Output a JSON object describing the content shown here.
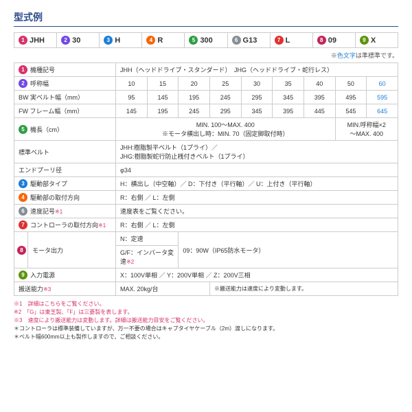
{
  "heading": "型式例",
  "badge_colors": {
    "1": "#d6336c",
    "2": "#7048e8",
    "3": "#1c7ed6",
    "4": "#f76707",
    "5": "#2f9e44",
    "6": "#868e96",
    "7": "#e03131",
    "8": "#c2255c",
    "9": "#5c940d"
  },
  "model_row": [
    {
      "n": "1",
      "t": "JHH"
    },
    {
      "n": "2",
      "t": "30"
    },
    {
      "n": "3",
      "t": "H"
    },
    {
      "n": "4",
      "t": "R"
    },
    {
      "n": "5",
      "t": "300"
    },
    {
      "n": "6",
      "t": "G13"
    },
    {
      "n": "7",
      "t": "L"
    },
    {
      "n": "8",
      "t": "09"
    },
    {
      "n": "9",
      "t": "X"
    }
  ],
  "top_note": {
    "pre": "※",
    "hl": "色文字",
    "post": "は準標準です。"
  },
  "row1": {
    "label": "機種記号",
    "val": "JHH（ヘッドドライブ・スタンダード）　JHG（ヘッドドライブ・蛇行レス）"
  },
  "row2": {
    "label": "呼称幅",
    "cells": [
      "10",
      "15",
      "20",
      "25",
      "30",
      "35",
      "40",
      "50",
      "60"
    ]
  },
  "row_bw": {
    "label": "BW 実ベルト幅（mm）",
    "cells": [
      "95",
      "145",
      "195",
      "245",
      "295",
      "345",
      "395",
      "495",
      "595"
    ]
  },
  "row_fw": {
    "label": "FW フレーム幅（mm）",
    "cells": [
      "145",
      "195",
      "245",
      "295",
      "345",
      "395",
      "445",
      "545",
      "645"
    ]
  },
  "row5": {
    "label": "機長（cm）",
    "a": "MIN. 100～MAX. 400",
    "b": "※モータ横出し時：MIN. 70（固定脚取付時）",
    "c": "MIN.呼称幅×2\n～MAX. 400"
  },
  "row_belt": {
    "label": "標準ベルト",
    "val": "JHH:樹脂製平ベルト（1プライ）／\nJHG:樹脂製蛇行防止桟付きベルト（1プライ）"
  },
  "row_ep": {
    "label": "エンドプーリ径",
    "val": "φ34"
  },
  "row_drive": {
    "badge": "3",
    "label": "駆動部タイプ",
    "val": "H：横出し（中空軸）／ D：下付き（平行軸）／ U：上付き（平行軸）"
  },
  "row_mount": {
    "badge": "4",
    "label": "駆動部の取付方向",
    "val": "R：右側 ／ L：左側"
  },
  "row_speed": {
    "label": "速度記号",
    "star": "※1",
    "val": "速度表をご覧ください。"
  },
  "row_ctrl": {
    "badge": "7",
    "label": "コントローラの取付方向",
    "star": "※1",
    "val": "R：右側 ／ L：左側"
  },
  "row_motor": {
    "badge": "8",
    "label": "モータ出力",
    "sub1": "N：定速",
    "sub2": "G/F：インバータ変速",
    "star2": "※2",
    "val": "09：90W（IP65防水モータ）"
  },
  "row_power": {
    "badge": "9",
    "label": "入力電源",
    "val": "X：100V単相 ／ Y：200V単相 ／ Z：200V三相"
  },
  "row_cap": {
    "label": "搬送能力",
    "star": "※3",
    "val1": "MAX. 20kg/台",
    "val2": "※搬送能力は速度により変動します。"
  },
  "footnotes": [
    "※1　詳細はこちらをご覧ください。",
    "※2　「G」は東芝製、「F」は三菱製を表します。",
    "※3　速度により搬送能力は変動します。詳細は搬送能力目安をご覧ください。",
    "＊コントローラは標準装備していますが、万一不要の場合はキャプタイヤケーブル（2m）渡しになります。",
    "＊ベルト幅600mm以上も製作しますので、ご相談ください。"
  ]
}
